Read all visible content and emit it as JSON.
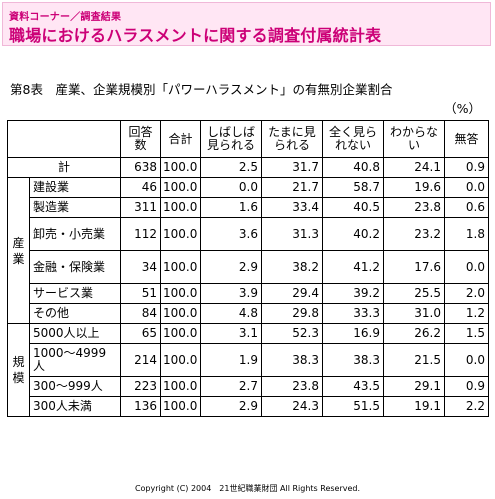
{
  "header": {
    "subtitle": "資料コーナー／調査結果",
    "title": "職場におけるハラスメントに関する調査付属統計表"
  },
  "table_caption": "第8表　産業、企業規模別「パワーハラスメント」の有無別企業割合",
  "unit": "（%）",
  "columns": [
    "回答数",
    "合計",
    "しばしば見られる",
    "たまに見られる",
    "全く見られない",
    "わからない",
    "無答"
  ],
  "total_row": {
    "label": "計",
    "values": [
      "638",
      "100.0",
      "2.5",
      "31.7",
      "40.8",
      "24.1",
      "0.9"
    ]
  },
  "groups": [
    {
      "label": "産業",
      "rows": [
        {
          "label": "建設業",
          "values": [
            "46",
            "100.0",
            "0.0",
            "21.7",
            "58.7",
            "19.6",
            "0.0"
          ]
        },
        {
          "label": "製造業",
          "values": [
            "311",
            "100.0",
            "1.6",
            "33.4",
            "40.5",
            "23.8",
            "0.6"
          ]
        },
        {
          "label": "卸売・小売業",
          "values": [
            "112",
            "100.0",
            "3.6",
            "31.3",
            "40.2",
            "23.2",
            "1.8"
          ]
        },
        {
          "label": "金融・保険業",
          "values": [
            "34",
            "100.0",
            "2.9",
            "38.2",
            "41.2",
            "17.6",
            "0.0"
          ]
        },
        {
          "label": "サービス業",
          "values": [
            "51",
            "100.0",
            "3.9",
            "29.4",
            "39.2",
            "25.5",
            "2.0"
          ]
        },
        {
          "label": "その他",
          "values": [
            "84",
            "100.0",
            "4.8",
            "29.8",
            "33.3",
            "31.0",
            "1.2"
          ]
        }
      ]
    },
    {
      "label": "規模",
      "rows": [
        {
          "label": "5000人以上",
          "values": [
            "65",
            "100.0",
            "3.1",
            "52.3",
            "16.9",
            "26.2",
            "1.5"
          ]
        },
        {
          "label": "1000〜4999人",
          "values": [
            "214",
            "100.0",
            "1.9",
            "38.3",
            "38.3",
            "21.5",
            "0.0"
          ]
        },
        {
          "label": "300〜999人",
          "values": [
            "223",
            "100.0",
            "2.7",
            "23.8",
            "43.5",
            "29.1",
            "0.9"
          ]
        },
        {
          "label": "300人未満",
          "values": [
            "136",
            "100.0",
            "2.9",
            "24.3",
            "51.5",
            "19.1",
            "2.2"
          ]
        }
      ]
    }
  ],
  "copyright": "Copyright (C) 2004　21世紀職業財団 All Rights Reserved.",
  "colors": {
    "header_bg": "#ffe6f4",
    "header_text": "#cc0077"
  }
}
